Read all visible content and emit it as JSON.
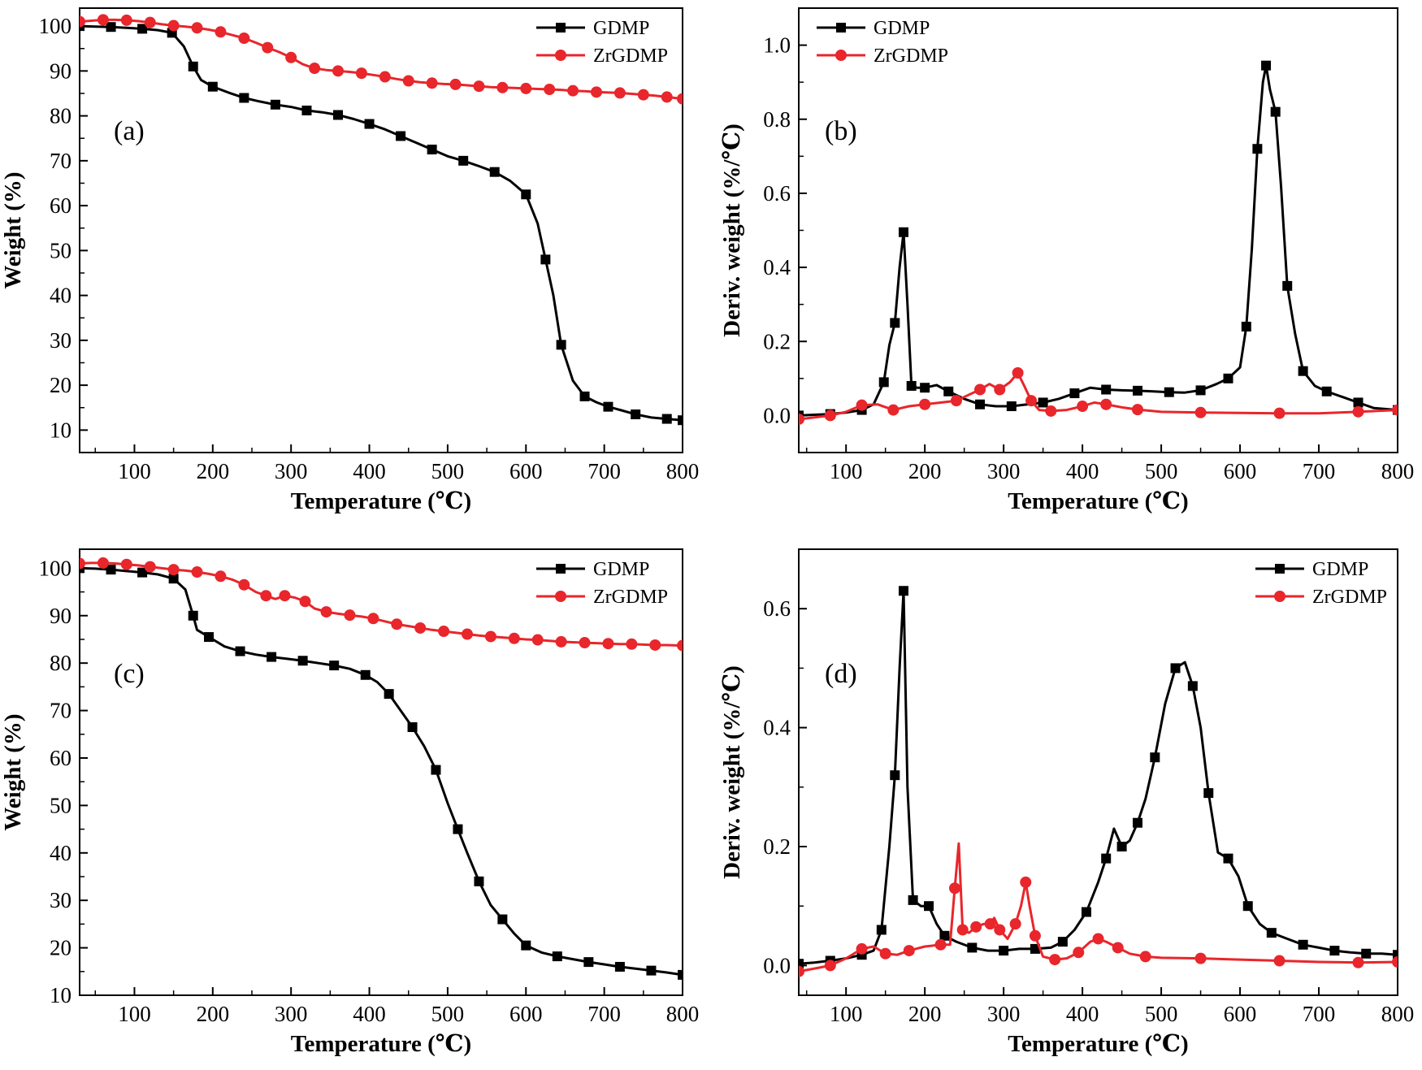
{
  "colors": {
    "GDMP": "#000000",
    "ZrGDMP": "#e8262b"
  },
  "chart_data": [
    {
      "panel": "(a)",
      "type": "line",
      "xlabel": "Temperature (℃)",
      "ylabel": "Weight (%)",
      "xlim": [
        30,
        800
      ],
      "ylim": [
        5,
        104
      ],
      "xticks": [
        100,
        200,
        300,
        400,
        500,
        600,
        700,
        800
      ],
      "yticks": [
        10,
        20,
        30,
        40,
        50,
        60,
        70,
        80,
        90,
        100
      ],
      "legend": {
        "placement": "top-right"
      },
      "series": [
        {
          "name": "GDMP",
          "color": "#000000",
          "marker": "square",
          "x": [
            30,
            50,
            70,
            90,
            110,
            130,
            148,
            163,
            175,
            185,
            200,
            220,
            240,
            260,
            280,
            300,
            320,
            340,
            360,
            380,
            400,
            420,
            440,
            460,
            480,
            500,
            520,
            540,
            560,
            580,
            600,
            615,
            625,
            635,
            645,
            660,
            675,
            690,
            705,
            720,
            740,
            760,
            780,
            800
          ],
          "y": [
            100,
            99.9,
            99.8,
            99.6,
            99.4,
            99.1,
            98.5,
            95.5,
            91,
            88,
            86.5,
            85.2,
            84,
            83.2,
            82.5,
            82,
            81.2,
            80.8,
            80.2,
            79.3,
            78.2,
            77,
            75.5,
            74,
            72.5,
            71,
            70,
            68.8,
            67.5,
            65.5,
            62.5,
            56,
            48,
            40,
            29,
            21,
            17.5,
            16.2,
            15.2,
            14.5,
            13.5,
            12.8,
            12.5,
            12.2
          ]
        },
        {
          "name": "ZrGDMP",
          "color": "#e8262b",
          "marker": "circle",
          "x": [
            30,
            45,
            60,
            75,
            90,
            105,
            120,
            135,
            150,
            165,
            180,
            195,
            210,
            225,
            240,
            255,
            270,
            285,
            300,
            315,
            330,
            345,
            360,
            375,
            390,
            405,
            420,
            435,
            450,
            465,
            480,
            495,
            510,
            525,
            540,
            555,
            570,
            585,
            600,
            615,
            630,
            645,
            660,
            675,
            690,
            705,
            720,
            735,
            750,
            765,
            780,
            800
          ],
          "y": [
            101,
            101.2,
            101.4,
            101.4,
            101.3,
            101.1,
            100.8,
            100.4,
            100.1,
            99.9,
            99.6,
            99.2,
            98.7,
            98,
            97.3,
            96.3,
            95.2,
            94.2,
            93,
            91.5,
            90.6,
            90.2,
            90,
            89.8,
            89.5,
            89.1,
            88.7,
            88.2,
            87.8,
            87.5,
            87.3,
            87.1,
            87,
            86.8,
            86.6,
            86.4,
            86.3,
            86.2,
            86.1,
            86,
            85.9,
            85.8,
            85.6,
            85.5,
            85.3,
            85.2,
            85.1,
            84.9,
            84.7,
            84.5,
            84.2,
            83.8
          ]
        }
      ]
    },
    {
      "panel": "(b)",
      "type": "line",
      "xlabel": "Temperature (℃)",
      "ylabel": "Deriv. weight (%/℃)",
      "xlim": [
        40,
        800
      ],
      "ylim": [
        -0.1,
        1.1
      ],
      "xticks": [
        100,
        200,
        300,
        400,
        500,
        600,
        700,
        800
      ],
      "yticks": [
        0.0,
        0.2,
        0.4,
        0.6,
        0.8,
        1.0
      ],
      "ytick_labels": [
        "0.0",
        "0.2",
        "0.4",
        "0.6",
        "0.8",
        "1.0"
      ],
      "legend": {
        "placement": "top-left"
      },
      "series": [
        {
          "name": "GDMP",
          "color": "#000000",
          "marker": "square",
          "x": [
            40,
            60,
            80,
            100,
            120,
            135,
            148,
            155,
            162,
            168,
            173,
            178,
            183,
            190,
            200,
            215,
            230,
            250,
            270,
            290,
            310,
            330,
            350,
            370,
            390,
            410,
            430,
            450,
            470,
            490,
            510,
            530,
            550,
            570,
            585,
            600,
            608,
            615,
            622,
            629,
            633,
            638,
            645,
            652,
            660,
            670,
            680,
            695,
            710,
            730,
            750,
            770,
            800
          ],
          "y": [
            0.0,
            0.002,
            0.004,
            0.008,
            0.015,
            0.03,
            0.09,
            0.19,
            0.25,
            0.4,
            0.495,
            0.3,
            0.08,
            0.075,
            0.075,
            0.082,
            0.065,
            0.045,
            0.03,
            0.025,
            0.025,
            0.03,
            0.035,
            0.045,
            0.06,
            0.075,
            0.07,
            0.068,
            0.067,
            0.065,
            0.063,
            0.062,
            0.068,
            0.085,
            0.1,
            0.13,
            0.24,
            0.45,
            0.72,
            0.9,
            0.945,
            0.88,
            0.82,
            0.62,
            0.35,
            0.22,
            0.12,
            0.08,
            0.065,
            0.05,
            0.035,
            0.02,
            0.015
          ]
        },
        {
          "name": "ZrGDMP",
          "color": "#e8262b",
          "marker": "circle",
          "x": [
            40,
            60,
            80,
            100,
            120,
            140,
            160,
            180,
            200,
            220,
            240,
            255,
            270,
            282,
            295,
            308,
            318,
            325,
            335,
            345,
            360,
            380,
            400,
            415,
            430,
            450,
            470,
            500,
            550,
            600,
            650,
            700,
            750,
            800
          ],
          "y": [
            -0.01,
            -0.005,
            0.0,
            0.01,
            0.028,
            0.03,
            0.015,
            0.025,
            0.03,
            0.035,
            0.04,
            0.055,
            0.07,
            0.085,
            0.07,
            0.09,
            0.115,
            0.085,
            0.04,
            0.015,
            0.012,
            0.015,
            0.025,
            0.035,
            0.03,
            0.022,
            0.016,
            0.01,
            0.008,
            0.007,
            0.006,
            0.006,
            0.01,
            0.015
          ]
        }
      ]
    },
    {
      "panel": "(c)",
      "type": "line",
      "xlabel": "Temperature (℃)",
      "ylabel": "Weight (%)",
      "xlim": [
        30,
        800
      ],
      "ylim": [
        10,
        104
      ],
      "xticks": [
        100,
        200,
        300,
        400,
        500,
        600,
        700,
        800
      ],
      "yticks": [
        10,
        20,
        30,
        40,
        50,
        60,
        70,
        80,
        90,
        100
      ],
      "legend": {
        "placement": "top-right"
      },
      "series": [
        {
          "name": "GDMP",
          "color": "#000000",
          "marker": "square",
          "x": [
            30,
            50,
            70,
            90,
            110,
            130,
            150,
            165,
            175,
            180,
            195,
            215,
            235,
            255,
            275,
            295,
            315,
            335,
            355,
            375,
            395,
            410,
            425,
            440,
            455,
            470,
            485,
            500,
            513,
            525,
            540,
            555,
            570,
            585,
            600,
            620,
            640,
            660,
            680,
            700,
            720,
            740,
            760,
            780,
            800
          ],
          "y": [
            100,
            99.9,
            99.7,
            99.4,
            99.1,
            98.7,
            97.8,
            95.5,
            90,
            87,
            85.5,
            83.5,
            82.5,
            81.8,
            81.3,
            80.9,
            80.5,
            80,
            79.5,
            78.8,
            77.5,
            76,
            73.5,
            70,
            66.5,
            62.5,
            57.5,
            50.5,
            45,
            40,
            34,
            29,
            26,
            23,
            20.5,
            19,
            18.2,
            17.6,
            17,
            16.5,
            16,
            15.6,
            15.2,
            14.8,
            14.3
          ]
        },
        {
          "name": "ZrGDMP",
          "color": "#e8262b",
          "marker": "circle",
          "x": [
            30,
            45,
            60,
            75,
            90,
            105,
            120,
            135,
            150,
            165,
            180,
            195,
            210,
            225,
            240,
            255,
            268,
            280,
            292,
            305,
            318,
            330,
            345,
            360,
            375,
            390,
            405,
            420,
            435,
            450,
            465,
            480,
            495,
            510,
            525,
            540,
            555,
            570,
            585,
            600,
            615,
            630,
            645,
            660,
            675,
            690,
            705,
            720,
            735,
            750,
            765,
            780,
            800
          ],
          "y": [
            101,
            101.1,
            101.1,
            101,
            100.8,
            100.6,
            100.3,
            100,
            99.7,
            99.5,
            99.2,
            98.8,
            98.3,
            97.6,
            96.5,
            95,
            94.2,
            93.5,
            94.2,
            93.8,
            93,
            91.5,
            90.8,
            90.4,
            90.1,
            89.8,
            89.4,
            88.8,
            88.2,
            87.8,
            87.4,
            87,
            86.7,
            86.4,
            86.1,
            85.8,
            85.6,
            85.4,
            85.2,
            85,
            84.9,
            84.7,
            84.5,
            84.4,
            84.3,
            84.2,
            84.1,
            84,
            84,
            83.9,
            83.8,
            83.8,
            83.7
          ]
        }
      ]
    },
    {
      "panel": "(d)",
      "type": "line",
      "xlabel": "Temperature (℃)",
      "ylabel": "Deriv. weight (%/℃)",
      "xlim": [
        40,
        800
      ],
      "ylim": [
        -0.05,
        0.7
      ],
      "xticks": [
        100,
        200,
        300,
        400,
        500,
        600,
        700,
        800
      ],
      "yticks": [
        0.0,
        0.2,
        0.4,
        0.6
      ],
      "ytick_labels": [
        "0.0",
        "0.2",
        "0.4",
        "0.6"
      ],
      "legend": {
        "placement": "top-right"
      },
      "series": [
        {
          "name": "GDMP",
          "color": "#000000",
          "marker": "square",
          "x": [
            40,
            60,
            80,
            100,
            120,
            135,
            145,
            155,
            162,
            168,
            173,
            178,
            185,
            195,
            205,
            215,
            225,
            240,
            260,
            280,
            300,
            320,
            340,
            360,
            375,
            390,
            405,
            420,
            430,
            440,
            450,
            460,
            470,
            480,
            492,
            505,
            518,
            530,
            540,
            550,
            560,
            572,
            585,
            598,
            610,
            625,
            640,
            660,
            680,
            700,
            720,
            740,
            760,
            780,
            800
          ],
          "y": [
            0.003,
            0.005,
            0.008,
            0.012,
            0.018,
            0.025,
            0.06,
            0.2,
            0.32,
            0.5,
            0.63,
            0.3,
            0.11,
            0.1,
            0.1,
            0.07,
            0.05,
            0.04,
            0.03,
            0.025,
            0.025,
            0.028,
            0.028,
            0.03,
            0.04,
            0.06,
            0.09,
            0.14,
            0.18,
            0.23,
            0.2,
            0.21,
            0.24,
            0.28,
            0.35,
            0.44,
            0.5,
            0.51,
            0.47,
            0.4,
            0.29,
            0.19,
            0.18,
            0.15,
            0.1,
            0.07,
            0.055,
            0.045,
            0.035,
            0.03,
            0.025,
            0.022,
            0.02,
            0.02,
            0.018
          ]
        },
        {
          "name": "ZrGDMP",
          "color": "#e8262b",
          "marker": "circle",
          "x": [
            40,
            60,
            80,
            100,
            120,
            135,
            150,
            165,
            180,
            200,
            220,
            232,
            238,
            243,
            248,
            256,
            265,
            275,
            283,
            288,
            295,
            305,
            315,
            322,
            328,
            333,
            340,
            350,
            365,
            380,
            395,
            410,
            420,
            430,
            445,
            460,
            480,
            500,
            550,
            600,
            650,
            700,
            750,
            800
          ],
          "y": [
            -0.01,
            -0.005,
            0.0,
            0.012,
            0.028,
            0.032,
            0.02,
            0.018,
            0.025,
            0.032,
            0.035,
            0.035,
            0.13,
            0.205,
            0.06,
            0.055,
            0.065,
            0.07,
            0.07,
            0.08,
            0.06,
            0.045,
            0.07,
            0.1,
            0.14,
            0.1,
            0.05,
            0.015,
            0.01,
            0.012,
            0.022,
            0.04,
            0.045,
            0.04,
            0.03,
            0.02,
            0.015,
            0.013,
            0.012,
            0.01,
            0.008,
            0.006,
            0.005,
            0.006
          ]
        }
      ]
    }
  ]
}
